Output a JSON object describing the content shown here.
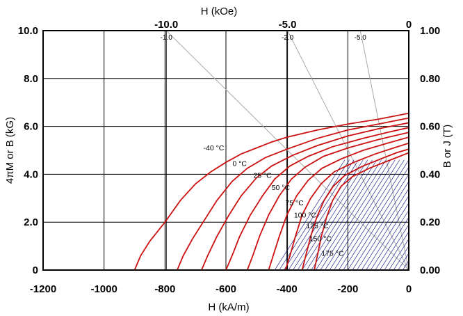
{
  "chart_data": {
    "type": "line",
    "xlabel": "H (kA/m)",
    "ylabel_left": "4πM or B (kG)",
    "xlabel_top": "H (kOe)",
    "ylabel_right": "B or J (T)",
    "xlim": [
      -1200,
      0
    ],
    "ylim": [
      0,
      10
    ],
    "x_ticks": [
      -1200,
      -1000,
      -800,
      -600,
      -400,
      -200,
      0
    ],
    "x_tick_labels": [
      "-1200",
      "-1000",
      "-800",
      "-600",
      "-400",
      "-200",
      "0"
    ],
    "y_ticks": [
      0,
      2,
      4,
      6,
      8,
      10
    ],
    "y_tick_labels": [
      "0",
      "2.0",
      "4.0",
      "6.0",
      "8.0",
      "10.0"
    ],
    "top_ticks_kOe": [
      -10,
      -5,
      0
    ],
    "top_tick_labels": [
      "-10.0",
      "-5.0",
      "0"
    ],
    "right_ticks_T": [
      0,
      0.2,
      0.4,
      0.6,
      0.8,
      1.0
    ],
    "right_tick_labels": [
      "0.00",
      "0.20",
      "0.40",
      "0.60",
      "0.80",
      "1.00"
    ],
    "grid": true,
    "load_lines": [
      {
        "label": "-1.0",
        "slope": -1.0
      },
      {
        "label": "-2.0",
        "slope": -2.0
      },
      {
        "label": "-5.0",
        "slope": -5.0
      }
    ],
    "series": [
      {
        "name": "-40 °C",
        "points": [
          [
            -900,
            0
          ],
          [
            -880,
            0.6
          ],
          [
            -850,
            1.2
          ],
          [
            -800,
            2.0
          ],
          [
            -750,
            2.9
          ],
          [
            -700,
            3.6
          ],
          [
            -650,
            4.1
          ],
          [
            -600,
            4.5
          ],
          [
            -550,
            4.85
          ],
          [
            -500,
            5.1
          ],
          [
            -450,
            5.35
          ],
          [
            -400,
            5.55
          ],
          [
            -300,
            5.85
          ],
          [
            -200,
            6.1
          ],
          [
            -100,
            6.3
          ],
          [
            0,
            6.55
          ]
        ]
      },
      {
        "name": "0 °C",
        "points": [
          [
            -760,
            0
          ],
          [
            -740,
            0.6
          ],
          [
            -710,
            1.3
          ],
          [
            -670,
            2.1
          ],
          [
            -630,
            2.9
          ],
          [
            -580,
            3.7
          ],
          [
            -530,
            4.25
          ],
          [
            -470,
            4.7
          ],
          [
            -400,
            5.05
          ],
          [
            -300,
            5.5
          ],
          [
            -200,
            5.85
          ],
          [
            -100,
            6.1
          ],
          [
            0,
            6.35
          ]
        ]
      },
      {
        "name": "25 °C",
        "points": [
          [
            -680,
            0
          ],
          [
            -660,
            0.6
          ],
          [
            -630,
            1.4
          ],
          [
            -590,
            2.3
          ],
          [
            -550,
            3.1
          ],
          [
            -500,
            3.85
          ],
          [
            -450,
            4.35
          ],
          [
            -380,
            4.8
          ],
          [
            -300,
            5.2
          ],
          [
            -200,
            5.6
          ],
          [
            -100,
            5.9
          ],
          [
            0,
            6.15
          ]
        ]
      },
      {
        "name": "50 °C",
        "points": [
          [
            -600,
            0
          ],
          [
            -580,
            0.6
          ],
          [
            -555,
            1.4
          ],
          [
            -520,
            2.3
          ],
          [
            -480,
            3.1
          ],
          [
            -440,
            3.8
          ],
          [
            -390,
            4.35
          ],
          [
            -330,
            4.75
          ],
          [
            -250,
            5.15
          ],
          [
            -150,
            5.5
          ],
          [
            -70,
            5.75
          ],
          [
            0,
            5.95
          ]
        ]
      },
      {
        "name": "75 °C",
        "points": [
          [
            -530,
            0
          ],
          [
            -512,
            0.6
          ],
          [
            -490,
            1.4
          ],
          [
            -460,
            2.3
          ],
          [
            -425,
            3.1
          ],
          [
            -385,
            3.8
          ],
          [
            -340,
            4.3
          ],
          [
            -280,
            4.75
          ],
          [
            -200,
            5.1
          ],
          [
            -100,
            5.45
          ],
          [
            0,
            5.75
          ]
        ]
      },
      {
        "name": "100 °C",
        "points": [
          [
            -460,
            0
          ],
          [
            -445,
            0.6
          ],
          [
            -425,
            1.4
          ],
          [
            -400,
            2.3
          ],
          [
            -368,
            3.1
          ],
          [
            -330,
            3.75
          ],
          [
            -285,
            4.25
          ],
          [
            -220,
            4.65
          ],
          [
            -150,
            5.0
          ],
          [
            -70,
            5.3
          ],
          [
            0,
            5.55
          ]
        ]
      },
      {
        "name": "125 °C",
        "points": [
          [
            -405,
            0
          ],
          [
            -390,
            0.6
          ],
          [
            -372,
            1.4
          ],
          [
            -350,
            2.3
          ],
          [
            -322,
            3.0
          ],
          [
            -288,
            3.6
          ],
          [
            -245,
            4.1
          ],
          [
            -180,
            4.5
          ],
          [
            -110,
            4.85
          ],
          [
            -50,
            5.1
          ],
          [
            0,
            5.3
          ]
        ]
      },
      {
        "name": "150 °C",
        "points": [
          [
            -350,
            0
          ],
          [
            -338,
            0.6
          ],
          [
            -322,
            1.4
          ],
          [
            -302,
            2.2
          ],
          [
            -278,
            2.9
          ],
          [
            -248,
            3.5
          ],
          [
            -210,
            3.95
          ],
          [
            -150,
            4.35
          ],
          [
            -90,
            4.65
          ],
          [
            -40,
            4.9
          ],
          [
            0,
            5.05
          ]
        ]
      },
      {
        "name": "175 °C",
        "points": [
          [
            -310,
            0
          ],
          [
            -300,
            0.6
          ],
          [
            -287,
            1.4
          ],
          [
            -270,
            2.2
          ],
          [
            -250,
            2.9
          ],
          [
            -222,
            3.5
          ],
          [
            -185,
            3.9
          ],
          [
            -130,
            4.25
          ],
          [
            -70,
            4.55
          ],
          [
            -30,
            4.75
          ],
          [
            0,
            4.9
          ]
        ]
      }
    ]
  },
  "colors": {
    "curve": "#cc1010",
    "hatch": "#000080",
    "loadline": "#a8a8a8",
    "grid": "#000000"
  }
}
